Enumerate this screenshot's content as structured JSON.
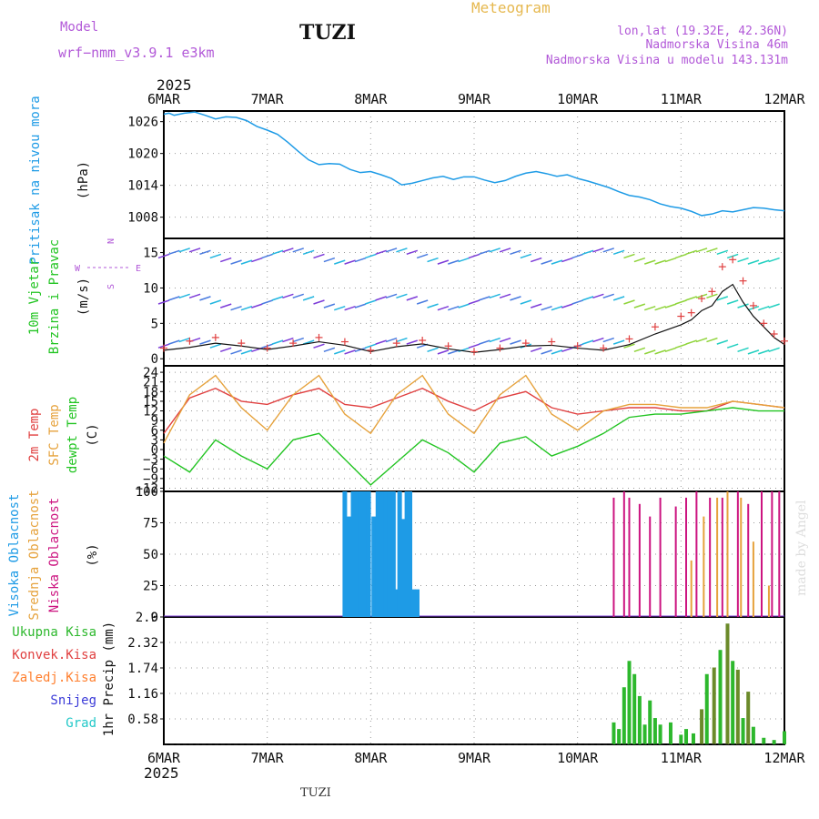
{
  "header": {
    "model_label": "Model",
    "model_name": "wrf−nmm_v3.9.1 e3km",
    "station": "TUZI",
    "meteogram": "Meteogram",
    "lonlat": "lon,lat (19.32E, 42.36N)",
    "elevation": "Nadmorska Visina 46m",
    "model_elevation": "Nadmorska Visina u modelu 143.131m",
    "year_top": "2025",
    "year_bottom": "2025",
    "footer_station": "TUZI",
    "watermark": "made by Angel"
  },
  "legend_wind": {
    "w": "W",
    "e": "E",
    "s": "S",
    "n": "N"
  },
  "colors": {
    "pressure": "#1e9be6",
    "temp": "#e04040",
    "sfc": "#e6a23c",
    "dewpt": "#22c422",
    "high": "#1e9be6",
    "mid": "#e6a23c",
    "low": "#cc1480",
    "precip": "#2db82d",
    "conv": "#e04040",
    "frozen": "#ff8030",
    "snow": "#3b3bd8",
    "hail": "#22c8c8"
  },
  "chart_data": [
    {
      "id": "pressure",
      "type": "line",
      "ylabel": [
        "Pritisak na nivou mora",
        "(hPa)"
      ],
      "xlabels": [
        "6MAR",
        "7MAR",
        "8MAR",
        "9MAR",
        "10MAR",
        "11MAR",
        "12MAR"
      ],
      "ylim": [
        1004,
        1028
      ],
      "yticks": [
        1008,
        1014,
        1020,
        1026
      ],
      "x": [
        0,
        0.05,
        0.1,
        0.2,
        0.3,
        0.4,
        0.5,
        0.6,
        0.7,
        0.8,
        0.9,
        1.0,
        1.1,
        1.2,
        1.3,
        1.4,
        1.5,
        1.6,
        1.7,
        1.8,
        1.9,
        2.0,
        2.1,
        2.2,
        2.3,
        2.4,
        2.5,
        2.6,
        2.7,
        2.8,
        2.9,
        3.0,
        3.1,
        3.2,
        3.3,
        3.4,
        3.5,
        3.6,
        3.7,
        3.8,
        3.9,
        4.0,
        4.1,
        4.2,
        4.3,
        4.4,
        4.5,
        4.6,
        4.7,
        4.8,
        4.9,
        5.0,
        5.1,
        5.2,
        5.3,
        5.4,
        5.5,
        5.6,
        5.7,
        5.8,
        5.9,
        6.0
      ],
      "y": [
        1027.4,
        1027.6,
        1027.2,
        1027.6,
        1027.8,
        1027.2,
        1026.5,
        1026.9,
        1026.8,
        1026.2,
        1025.1,
        1024.4,
        1023.6,
        1022.1,
        1020.4,
        1018.8,
        1017.9,
        1018.1,
        1018.0,
        1017.0,
        1016.4,
        1016.6,
        1016.0,
        1015.3,
        1014.1,
        1014.4,
        1014.9,
        1015.4,
        1015.7,
        1015.1,
        1015.6,
        1015.6,
        1015.0,
        1014.5,
        1014.9,
        1015.7,
        1016.3,
        1016.6,
        1016.2,
        1015.7,
        1016.0,
        1015.3,
        1014.8,
        1014.2,
        1013.6,
        1012.8,
        1012.1,
        1011.8,
        1011.3,
        1010.5,
        1010.0,
        1009.7,
        1009.1,
        1008.3,
        1008.6,
        1009.2,
        1009.0,
        1009.4,
        1009.8,
        1009.7,
        1009.4,
        1009.2
      ]
    },
    {
      "id": "wind",
      "type": "line",
      "ylabel": [
        "10m Vjetar",
        "Brzina i Pravac",
        "(m/s)"
      ],
      "ylim": [
        -1,
        17
      ],
      "yticks": [
        0,
        5,
        10,
        15
      ],
      "x": [
        0,
        0.25,
        0.5,
        0.75,
        1.0,
        1.25,
        1.5,
        1.75,
        2.0,
        2.25,
        2.5,
        2.75,
        3.0,
        3.25,
        3.5,
        3.75,
        4.0,
        4.25,
        4.5,
        4.75,
        5.0,
        5.1,
        5.2,
        5.3,
        5.4,
        5.5,
        5.6,
        5.7,
        5.8,
        5.9,
        6.0
      ],
      "speed": [
        1.2,
        1.6,
        2.2,
        1.8,
        1.3,
        1.8,
        2.4,
        1.9,
        1.0,
        1.7,
        2.1,
        1.4,
        0.9,
        1.3,
        1.8,
        1.9,
        1.5,
        1.2,
        2.0,
        3.5,
        4.8,
        5.5,
        6.8,
        7.5,
        9.5,
        10.5,
        8.0,
        6.0,
        4.5,
        3.0,
        2.0
      ],
      "gust": [
        1.5,
        2.5,
        3.0,
        2.2,
        1.5,
        2.2,
        3.0,
        2.4,
        1.2,
        2.2,
        2.6,
        1.8,
        1.0,
        1.5,
        2.2,
        2.4,
        1.8,
        1.5,
        2.8,
        4.5,
        6.0,
        6.5,
        8.5,
        9.5,
        13.0,
        14.0,
        11.0,
        7.5,
        5.0,
        3.5,
        2.5
      ]
    },
    {
      "id": "temp",
      "type": "line",
      "ylabel": [
        "2m Temp",
        "SFC Temp",
        "dewpt Temp",
        "(C)"
      ],
      "ylim": [
        -13,
        26
      ],
      "yticks": [
        24,
        21,
        18,
        15,
        12,
        9,
        6,
        3,
        0,
        -3,
        -6,
        -9,
        -12
      ],
      "x": [
        0,
        0.25,
        0.5,
        0.75,
        1.0,
        1.25,
        1.5,
        1.75,
        2.0,
        2.25,
        2.5,
        2.75,
        3.0,
        3.25,
        3.5,
        3.75,
        4.0,
        4.25,
        4.5,
        4.75,
        5.0,
        5.25,
        5.5,
        5.75,
        6.0
      ],
      "t2m": [
        5,
        16,
        19,
        15,
        14,
        17,
        19,
        14,
        13,
        16,
        19,
        15,
        12,
        16,
        18,
        13,
        11,
        12,
        13,
        13,
        12,
        12,
        15,
        14,
        13
      ],
      "sfc": [
        2,
        17,
        23,
        13,
        6,
        17,
        23,
        11,
        5,
        17,
        23,
        11,
        5,
        17,
        23,
        11,
        6,
        12,
        14,
        14,
        13,
        13,
        15,
        14,
        13
      ],
      "dew": [
        -2,
        -7,
        3,
        -2,
        -6,
        3,
        5,
        -3,
        -11,
        -4,
        3,
        -1,
        -7,
        2,
        4,
        -2,
        1,
        5,
        10,
        11,
        11,
        12,
        13,
        12,
        12
      ]
    },
    {
      "id": "clouds",
      "type": "bar",
      "ylabel": [
        "Visoka Oblacnost",
        "Srednja Oblacnost",
        "Niska Oblacnost",
        "(%)"
      ],
      "ylim": [
        0,
        100
      ],
      "yticks": [
        0,
        25,
        50,
        75,
        100
      ],
      "high": {
        "x": [
          1.75,
          1.79,
          1.83,
          1.87,
          1.9,
          1.94,
          1.98,
          2.03,
          2.07,
          2.11,
          2.15,
          2.18,
          2.22,
          2.25,
          2.28,
          2.32,
          2.35,
          2.38,
          2.41,
          2.45
        ],
        "v": [
          100,
          80,
          100,
          100,
          100,
          100,
          100,
          80,
          100,
          100,
          100,
          100,
          100,
          22,
          100,
          78,
          100,
          100,
          22,
          22
        ]
      },
      "low": {
        "x": [
          4.35,
          4.45,
          4.5,
          4.6,
          4.7,
          4.8,
          4.95,
          5.05,
          5.15,
          5.28,
          5.4,
          5.55,
          5.65,
          5.78,
          5.88,
          5.95
        ],
        "v": [
          95,
          100,
          95,
          90,
          80,
          95,
          88,
          95,
          100,
          95,
          95,
          100,
          90,
          100,
          100,
          100
        ]
      },
      "mid": {
        "x": [
          5.1,
          5.22,
          5.35,
          5.45,
          5.58,
          5.7,
          5.85
        ],
        "v": [
          45,
          80,
          95,
          100,
          95,
          60,
          25
        ]
      }
    },
    {
      "id": "precip",
      "type": "bar",
      "ylabel": [
        "1hr Precip (mm)"
      ],
      "ylim": [
        0,
        2.9
      ],
      "yticks": [
        0.58,
        1.16,
        1.74,
        2.32,
        2.9
      ],
      "legend": [
        "Ukupna Kisa",
        "Konvek.Kisa",
        "Zaledj.Kisa",
        "Snijeg",
        "Grad"
      ],
      "x": [
        4.35,
        4.4,
        4.45,
        4.5,
        4.55,
        4.6,
        4.65,
        4.7,
        4.75,
        4.8,
        4.9,
        5.0,
        5.05,
        5.12,
        5.2,
        5.25,
        5.32,
        5.38,
        5.45,
        5.5,
        5.55,
        5.6,
        5.65,
        5.7,
        5.8,
        5.9,
        6.0
      ],
      "values": [
        0.5,
        0.35,
        1.3,
        1.9,
        1.6,
        1.1,
        0.45,
        1.0,
        0.6,
        0.45,
        0.5,
        0.22,
        0.35,
        0.25,
        0.8,
        1.6,
        1.75,
        2.15,
        2.75,
        1.9,
        1.7,
        0.6,
        1.2,
        0.4,
        0.15,
        0.1,
        0.3
      ]
    }
  ]
}
